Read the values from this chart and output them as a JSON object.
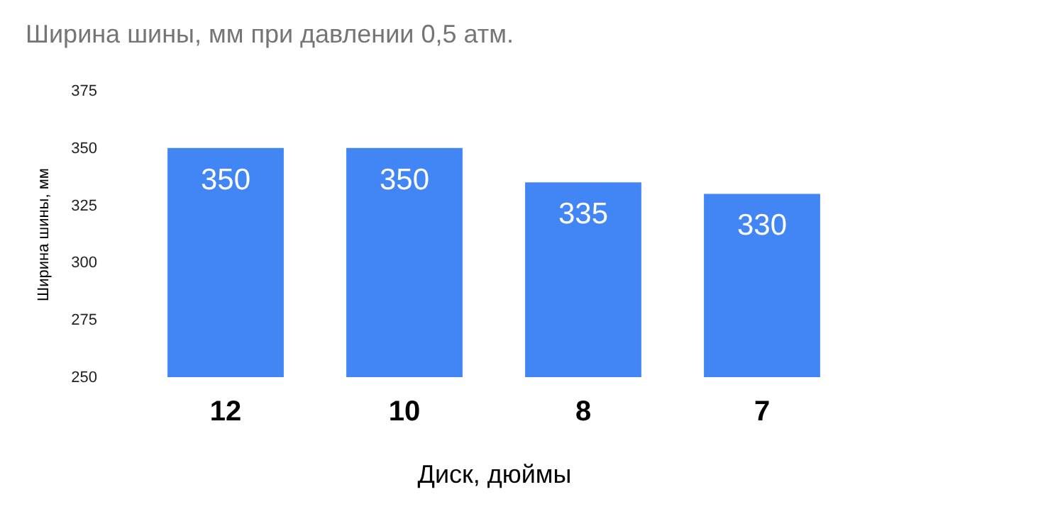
{
  "chart_data": {
    "type": "bar",
    "title": "Ширина шины, мм при давлении 0,5 атм.",
    "xlabel": "Диск, дюймы",
    "ylabel": "Ширина шины, мм",
    "categories": [
      "12",
      "10",
      "8",
      "7"
    ],
    "values": [
      350,
      350,
      335,
      330
    ],
    "color": "#4285f4",
    "ylim": [
      250,
      375
    ],
    "yticks": [
      250,
      275,
      300,
      325,
      350,
      375
    ],
    "grid": false,
    "data_labels": true
  }
}
